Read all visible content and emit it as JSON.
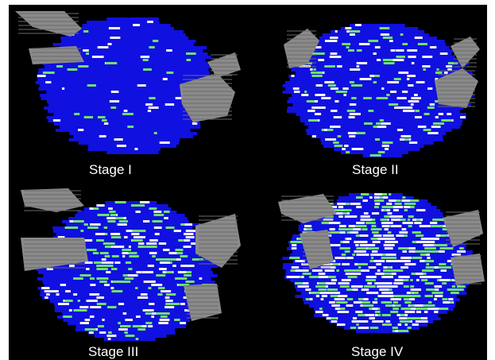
{
  "figure": {
    "background": "#000000",
    "panels": [
      {
        "label": "Stage I",
        "model": {
          "blue": "#1010e0",
          "grey": "#8a8a8a",
          "green": "#6fe06f",
          "white": "#f4f4f4",
          "mottling": 0.1
        }
      },
      {
        "label": "Stage II",
        "model": {
          "blue": "#1010e0",
          "grey": "#8a8a8a",
          "green": "#6fe06f",
          "white": "#f4f4f4",
          "mottling": 0.25
        }
      },
      {
        "label": "Stage III",
        "model": {
          "blue": "#1010e0",
          "grey": "#8a8a8a",
          "green": "#6fe06f",
          "white": "#f4f4f4",
          "mottling": 0.35
        }
      },
      {
        "label": "Stage IV",
        "model": {
          "blue": "#1010e0",
          "grey": "#8a8a8a",
          "green": "#6fe06f",
          "white": "#f4f4f4",
          "mottling": 0.7
        }
      }
    ]
  }
}
